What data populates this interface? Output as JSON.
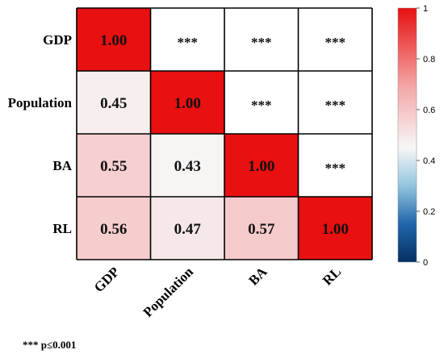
{
  "chart_data": {
    "type": "heatmap",
    "variables": [
      "GDP",
      "Population",
      "BA",
      "RL"
    ],
    "matrix": [
      [
        1.0,
        null,
        null,
        null
      ],
      [
        0.45,
        1.0,
        null,
        null
      ],
      [
        0.55,
        0.43,
        1.0,
        null
      ],
      [
        0.56,
        0.47,
        0.57,
        1.0
      ]
    ],
    "cell_labels": [
      [
        "1.00",
        "***",
        "***",
        "***"
      ],
      [
        "0.45",
        "1.00",
        "***",
        "***"
      ],
      [
        "0.55",
        "0.43",
        "1.00",
        "***"
      ],
      [
        "0.56",
        "0.47",
        "0.57",
        "1.00"
      ]
    ],
    "colorbar": {
      "range": [
        0,
        1
      ],
      "ticks": [
        "0",
        "0.2",
        "0.4",
        "0.6",
        "0.8",
        "1"
      ],
      "colors": {
        "low": "#053061",
        "mid": "#f7f7f7",
        "high": "#e81010"
      }
    },
    "footnote": "*** p≤0.001",
    "grid": true
  }
}
